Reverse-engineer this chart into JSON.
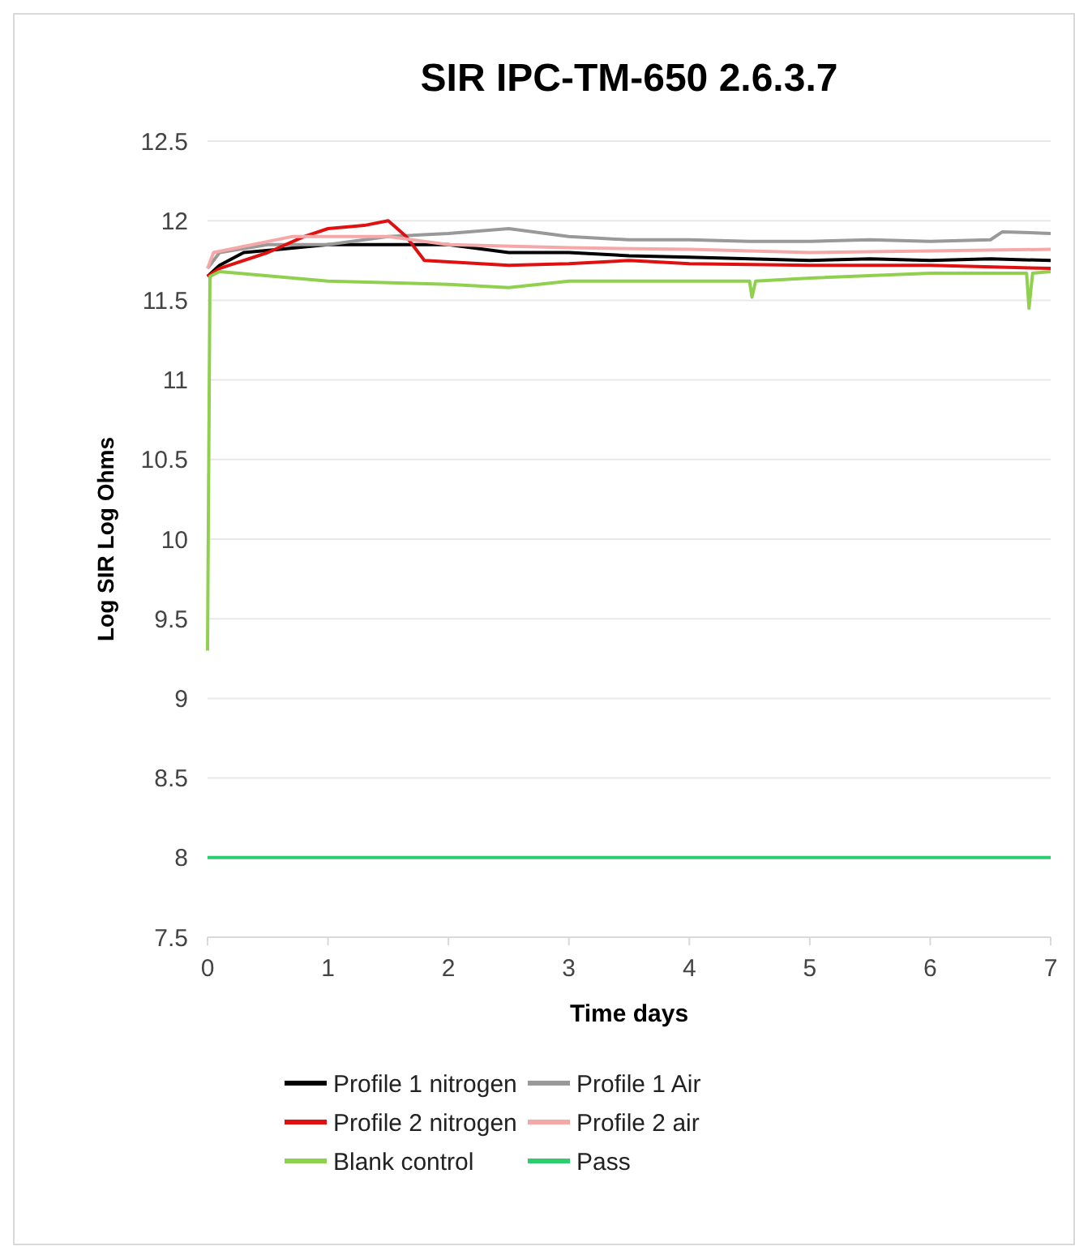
{
  "chart_data": {
    "type": "line",
    "title": "SIR  IPC-TM-650 2.6.3.7",
    "xlabel": "Time days",
    "ylabel": "Log SIR Log Ohms",
    "xlim": [
      0,
      7
    ],
    "xticks": [
      0,
      1,
      2,
      3,
      4,
      5,
      6,
      7
    ],
    "ylim": [
      7.5,
      12.5
    ],
    "yticks": [
      7.5,
      8,
      8.5,
      9,
      9.5,
      10,
      10.5,
      11,
      11.5,
      12,
      12.5
    ],
    "grid": "y",
    "legend": "bottom",
    "marker": "none",
    "line_style": "solid",
    "series": [
      {
        "name": "Profile 1 nitrogen",
        "color": "#000000",
        "x": [
          0,
          0.1,
          0.3,
          0.6,
          1,
          2,
          2.5,
          3,
          3.5,
          4,
          4.5,
          5,
          5.5,
          6,
          6.5,
          7
        ],
        "values": [
          11.65,
          11.72,
          11.8,
          11.82,
          11.85,
          11.85,
          11.8,
          11.8,
          11.78,
          11.77,
          11.76,
          11.75,
          11.76,
          11.75,
          11.76,
          11.75
        ]
      },
      {
        "name": "Profile 1 Air",
        "color": "#999999",
        "x": [
          0,
          0.1,
          0.5,
          1,
          1.5,
          2,
          2.5,
          3,
          3.5,
          4,
          4.5,
          5,
          5.5,
          6,
          6.5,
          6.6,
          7
        ],
        "values": [
          11.7,
          11.8,
          11.85,
          11.85,
          11.9,
          11.92,
          11.95,
          11.9,
          11.88,
          11.88,
          11.87,
          11.87,
          11.88,
          11.87,
          11.88,
          11.93,
          11.92
        ]
      },
      {
        "name": "Profile 2 nitrogen",
        "color": "#e01010",
        "x": [
          0,
          0.1,
          0.5,
          0.8,
          1,
          1.3,
          1.5,
          1.65,
          1.8,
          2.5,
          3,
          3.5,
          4,
          5,
          6,
          7
        ],
        "values": [
          11.65,
          11.7,
          11.8,
          11.9,
          11.95,
          11.97,
          12.0,
          11.9,
          11.75,
          11.72,
          11.73,
          11.75,
          11.73,
          11.72,
          11.72,
          11.7
        ]
      },
      {
        "name": "Profile 2 air",
        "color": "#f4a8a8",
        "x": [
          0,
          0.05,
          0.7,
          1.5,
          2,
          3,
          4,
          5,
          6,
          7
        ],
        "values": [
          11.7,
          11.8,
          11.9,
          11.9,
          11.85,
          11.83,
          11.82,
          11.8,
          11.81,
          11.82
        ]
      },
      {
        "name": "Blank control",
        "color": "#8fd14f",
        "x": [
          0,
          0.02,
          0.1,
          1,
          2,
          2.5,
          3,
          4,
          4.5,
          4.52,
          4.55,
          5,
          6,
          6.8,
          6.82,
          6.85,
          7
        ],
        "values": [
          9.3,
          11.65,
          11.68,
          11.62,
          11.6,
          11.58,
          11.62,
          11.62,
          11.62,
          11.52,
          11.62,
          11.64,
          11.67,
          11.67,
          11.45,
          11.67,
          11.68
        ]
      },
      {
        "name": "Pass",
        "color": "#2ecc71",
        "x": [
          0,
          7
        ],
        "values": [
          8,
          8
        ]
      }
    ]
  }
}
